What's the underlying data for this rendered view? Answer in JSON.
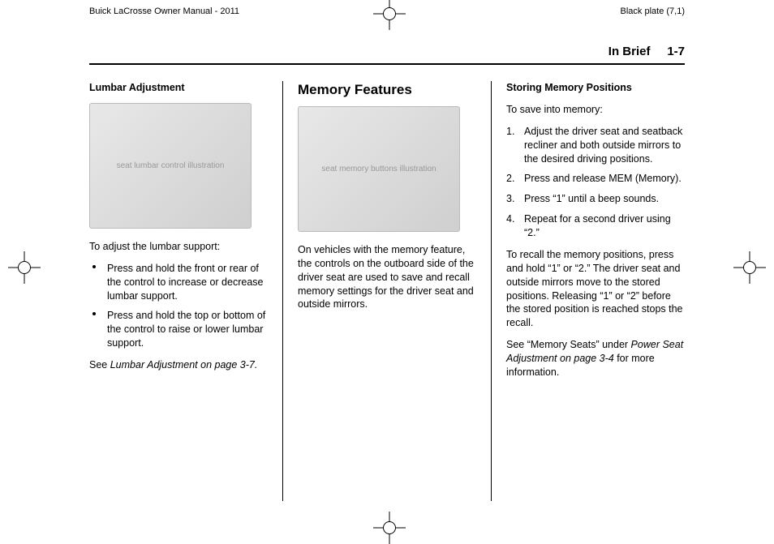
{
  "header": {
    "left": "Buick LaCrosse Owner Manual - 2011",
    "right": "Black plate (7,1)",
    "section": "In Brief",
    "page_ref": "1-7"
  },
  "col1": {
    "heading": "Lumbar Adjustment",
    "intro": "To adjust the lumbar support:",
    "bullets": [
      "Press and hold the front or rear of the control to increase or decrease lumbar support.",
      "Press and hold the top or bottom of the control to raise or lower lumbar support."
    ],
    "see_prefix": "See ",
    "see_ref": "Lumbar Adjustment on page 3‑7."
  },
  "col2": {
    "title": "Memory Features",
    "body": "On vehicles with the memory feature, the controls on the outboard side of the driver seat are used to save and recall memory settings for the driver seat and outside mirrors."
  },
  "col3": {
    "heading": "Storing Memory Positions",
    "intro": "To save into memory:",
    "steps": [
      "Adjust the driver seat and seatback recliner and both outside mirrors to the desired driving positions.",
      "Press and release MEM (Memory).",
      "Press “1” until a beep sounds.",
      "Repeat for a second driver using “2.”"
    ],
    "recall": "To recall the memory positions, press and hold “1” or “2.” The driver seat and outside mirrors move to the stored positions. Releasing “1” or “2” before the stored position is reached stops the recall.",
    "see_prefix": "See “Memory Seats” under ",
    "see_ref": "Power Seat Adjustment on page 3‑4",
    "see_suffix": " for more information."
  },
  "img": {
    "lumbar_alt": "seat lumbar control illustration",
    "memory_alt": "seat memory buttons illustration"
  }
}
